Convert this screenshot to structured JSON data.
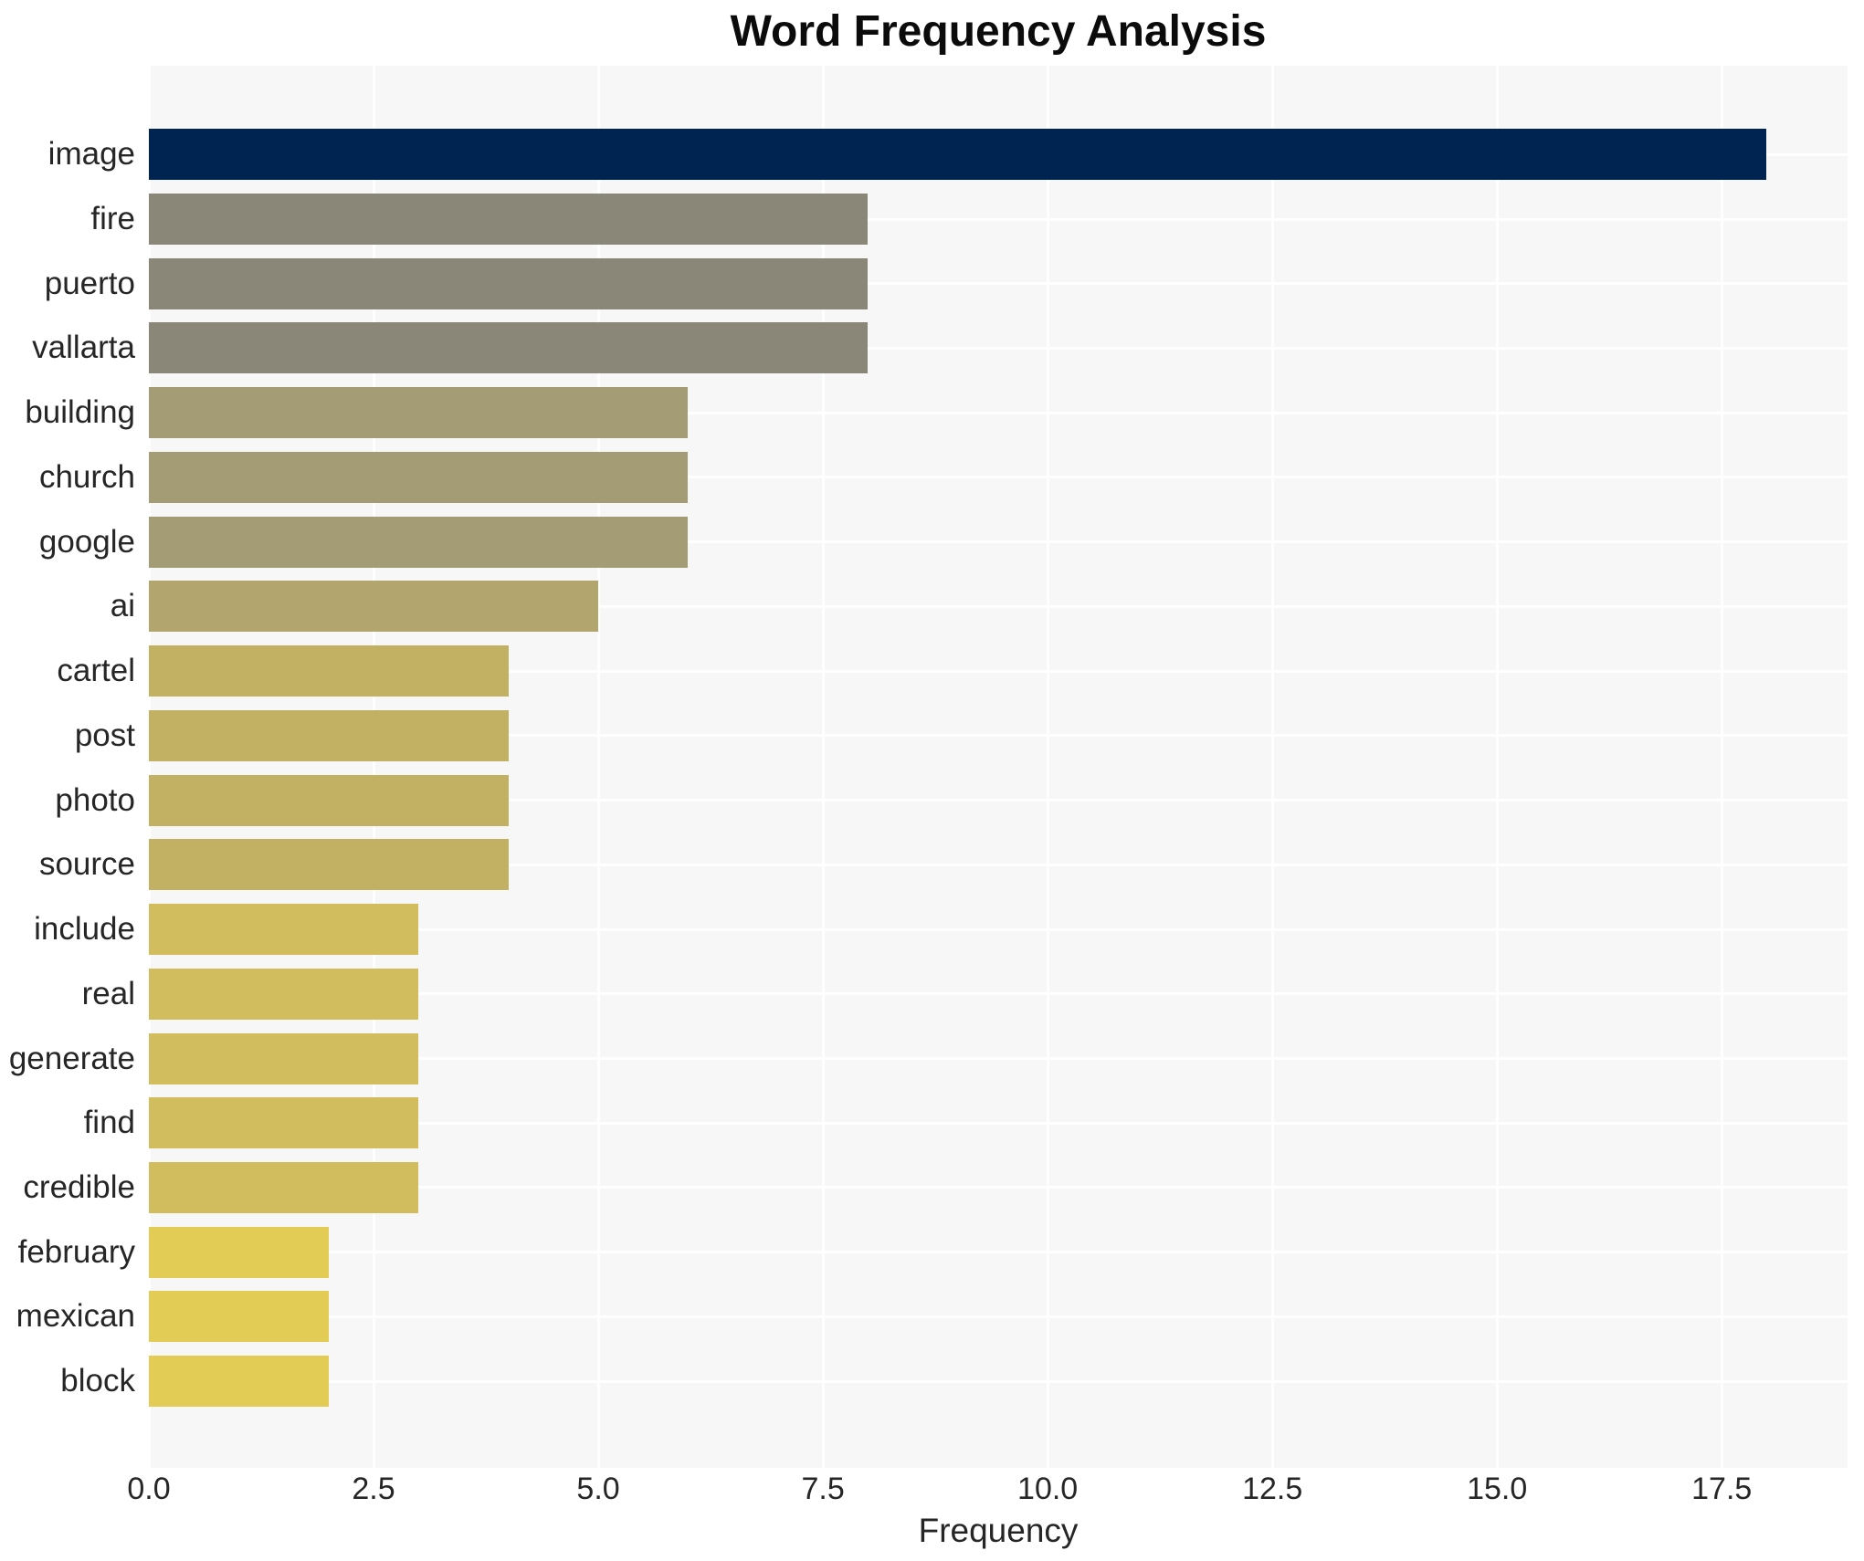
{
  "chart_data": {
    "type": "bar",
    "orientation": "horizontal",
    "title": "Word Frequency Analysis",
    "xlabel": "Frequency",
    "ylabel": "",
    "categories": [
      "image",
      "fire",
      "puerto",
      "vallarta",
      "building",
      "church",
      "google",
      "ai",
      "cartel",
      "post",
      "photo",
      "source",
      "include",
      "real",
      "generate",
      "find",
      "credible",
      "february",
      "mexican",
      "block"
    ],
    "values": [
      18,
      8,
      8,
      8,
      6,
      6,
      6,
      5,
      4,
      4,
      4,
      4,
      3,
      3,
      3,
      3,
      3,
      2,
      2,
      2
    ],
    "bar_colors": [
      "#002452",
      "#8a8779",
      "#8a8779",
      "#8a8779",
      "#a49c74",
      "#a49c74",
      "#a49c74",
      "#b2a56e",
      "#c2b162",
      "#c2b162",
      "#c2b162",
      "#c2b162",
      "#d2bd5e",
      "#d2bd5e",
      "#d2bd5e",
      "#d2bd5e",
      "#d2bd5e",
      "#e2cc55",
      "#e2cc55",
      "#e2cc55"
    ],
    "xticks": [
      0,
      2.5,
      5,
      7.5,
      10,
      12.5,
      15,
      17.5
    ],
    "xtick_labels": [
      "0.0",
      "2.5",
      "5.0",
      "7.5",
      "10.0",
      "12.5",
      "15.0",
      "17.5"
    ],
    "xlim": [
      0,
      18.9
    ],
    "grid": true,
    "legend": false,
    "plot_background": "#f7f7f7",
    "grid_color": "#ffffff",
    "text_color": "#262626"
  }
}
